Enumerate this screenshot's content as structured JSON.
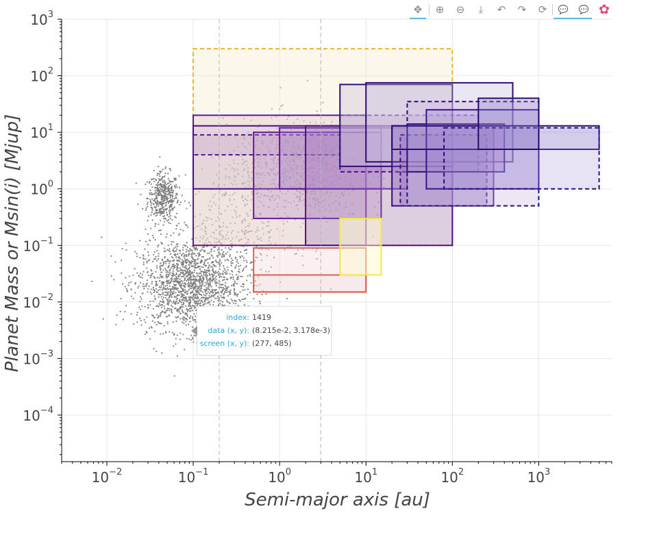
{
  "toolbar": {
    "tools": [
      {
        "icon": "pan-icon",
        "glyph": "✥",
        "active": true
      },
      {
        "icon": "zoom-in-icon",
        "glyph": "⊕",
        "active": false
      },
      {
        "icon": "zoom-out-icon",
        "glyph": "⊖",
        "active": false
      },
      {
        "icon": "save-icon",
        "glyph": "⤓",
        "active": false
      },
      {
        "icon": "undo-icon",
        "glyph": "↶",
        "active": false
      },
      {
        "icon": "redo-icon",
        "glyph": "↷",
        "active": false
      },
      {
        "icon": "reset-icon",
        "glyph": "⟳",
        "active": false
      },
      {
        "icon": "hover-icon",
        "glyph": "💬",
        "active": true
      },
      {
        "icon": "hover-icon",
        "glyph": "💬",
        "active": true
      },
      {
        "icon": "bokeh-logo-icon",
        "glyph": "✿",
        "active": false
      }
    ]
  },
  "tooltip": {
    "rows": [
      {
        "key": "index:",
        "value": "1419"
      },
      {
        "key": "data (x, y):",
        "value": "(8.215e-2, 3.178e-3)"
      },
      {
        "key": "screen (x, y):",
        "value": "(277, 485)"
      }
    ]
  },
  "chart_data": {
    "type": "scatter",
    "xlabel": "Semi-major axis [au]",
    "ylabel": "Planet Mass or Msin(i) [Mjup]",
    "xscale": "log",
    "yscale": "log",
    "xlim": [
      0.003,
      7000
    ],
    "ylim": [
      1.5e-05,
      1000
    ],
    "x_ticks": [
      {
        "m": "10",
        "e": "−2",
        "v": 0.01
      },
      {
        "m": "10",
        "e": "−1",
        "v": 0.1
      },
      {
        "m": "10",
        "e": "0",
        "v": 1
      },
      {
        "m": "10",
        "e": "1",
        "v": 10
      },
      {
        "m": "10",
        "e": "2",
        "v": 100
      },
      {
        "m": "10",
        "e": "3",
        "v": 1000
      }
    ],
    "y_ticks": [
      {
        "m": "10",
        "e": "−4",
        "v": 0.0001
      },
      {
        "m": "10",
        "e": "−3",
        "v": 0.001
      },
      {
        "m": "10",
        "e": "−2",
        "v": 0.01
      },
      {
        "m": "10",
        "e": "−1",
        "v": 0.1
      },
      {
        "m": "10",
        "e": "0",
        "v": 1
      },
      {
        "m": "10",
        "e": "1",
        "v": 10
      },
      {
        "m": "10",
        "e": "2",
        "v": 100
      },
      {
        "m": "10",
        "e": "3",
        "v": 1000
      }
    ],
    "grid": true,
    "vlines": [
      0.2,
      3
    ],
    "scatter_color": "#808080",
    "scatter_clusters": [
      {
        "cx": 0.045,
        "cy": 0.7,
        "sx": 0.09,
        "sy": 0.22,
        "n": 450
      },
      {
        "cx": 0.09,
        "cy": 0.02,
        "sx": 0.3,
        "sy": 0.4,
        "n": 1700
      },
      {
        "cx": 1.5,
        "cy": 2.0,
        "sx": 0.4,
        "sy": 0.45,
        "n": 750
      },
      {
        "cx": 0.3,
        "cy": 0.15,
        "sx": 0.35,
        "sy": 0.55,
        "n": 350
      }
    ],
    "rectangles": [
      {
        "x0": 0.1,
        "x1": 100,
        "y0": 0.1,
        "y1": 300,
        "fill": "#f5eccb",
        "fill_alpha": 0.4,
        "line": "#f0b429",
        "dash": true
      },
      {
        "x0": 0.1,
        "x1": 10,
        "y0": 0.1,
        "y1": 20,
        "fill": "#dcbfc8",
        "fill_alpha": 0.35,
        "line": "#5c1a8c",
        "dash": false
      },
      {
        "x0": 0.1,
        "x1": 15,
        "y0": 1,
        "y1": 13,
        "fill": "#c7a8cc",
        "fill_alpha": 0.25,
        "line": "#4b0c8a",
        "dash": false
      },
      {
        "x0": 0.1,
        "x1": 5,
        "y0": 4,
        "y1": 9,
        "fill": "#b79bc7",
        "fill_alpha": 0.25,
        "line": "#5a138f",
        "dash": true
      },
      {
        "x0": 0.5,
        "x1": 15,
        "y0": 0.3,
        "y1": 10,
        "fill": "#b589c7",
        "fill_alpha": 0.3,
        "line": "#5e1d97",
        "dash": false
      },
      {
        "x0": 1,
        "x1": 30,
        "y0": 1,
        "y1": 12,
        "fill": "#a67fc2",
        "fill_alpha": 0.3,
        "line": "#5a1896",
        "dash": false
      },
      {
        "x0": 2,
        "x1": 100,
        "y0": 0.1,
        "y1": 13,
        "fill": "#9d74bf",
        "fill_alpha": 0.3,
        "line": "#4c0f8c",
        "dash": false
      },
      {
        "x0": 5,
        "x1": 200,
        "y0": 2,
        "y1": 20,
        "fill": "#a586c4",
        "fill_alpha": 0.3,
        "line": "#4b0f88",
        "dash": true
      },
      {
        "x0": 5,
        "x1": 100,
        "y0": 2.5,
        "y1": 70,
        "fill": "#d0c3df",
        "fill_alpha": 0.4,
        "line": "#2f0b75",
        "dash": false
      },
      {
        "x0": 10,
        "x1": 500,
        "y0": 3,
        "y1": 75,
        "fill": "#c6b7e0",
        "fill_alpha": 0.35,
        "line": "#2e0a73",
        "dash": false
      },
      {
        "x0": 20,
        "x1": 300,
        "y0": 0.5,
        "y1": 13,
        "fill": "#8a64ba",
        "fill_alpha": 0.3,
        "line": "#35088a",
        "dash": false
      },
      {
        "x0": 25,
        "x1": 250,
        "y0": 0.5,
        "y1": 9,
        "fill": "#8f6ec0",
        "fill_alpha": 0.3,
        "line": "#3b0a88",
        "dash": true
      },
      {
        "x0": 30,
        "x1": 1000,
        "y0": 0.5,
        "y1": 35,
        "fill": "#c9b8e3",
        "fill_alpha": 0.35,
        "line": "#2d0b74",
        "dash": true
      },
      {
        "x0": 30,
        "x1": 400,
        "y0": 2,
        "y1": 14,
        "fill": "#9b7fc9",
        "fill_alpha": 0.3,
        "line": "#340a86",
        "dash": false
      },
      {
        "x0": 50,
        "x1": 1000,
        "y0": 1,
        "y1": 25,
        "fill": "#9e86cf",
        "fill_alpha": 0.3,
        "line": "#3a118b",
        "dash": false
      },
      {
        "x0": 20,
        "x1": 5000,
        "y0": 5,
        "y1": 13,
        "fill": "#9b8acb",
        "fill_alpha": 0.25,
        "line": "#270b6f",
        "dash": false
      },
      {
        "x0": 80,
        "x1": 5000,
        "y0": 1,
        "y1": 12,
        "fill": "#a090d5",
        "fill_alpha": 0.25,
        "line": "#2c0c79",
        "dash": true
      },
      {
        "x0": 200,
        "x1": 1000,
        "y0": 5,
        "y1": 40,
        "fill": "#8f7dc9",
        "fill_alpha": 0.3,
        "line": "#240b6b",
        "dash": false
      },
      {
        "x0": 0.5,
        "x1": 10,
        "y0": 0.015,
        "y1": 0.09,
        "fill": "#f2d6dc",
        "fill_alpha": 0.4,
        "line": "#d9614f",
        "dash": false
      },
      {
        "x0": 0.5,
        "x1": 10,
        "y0": 0.015,
        "y1": 0.03,
        "fill": "#f2d6dc",
        "fill_alpha": 0.2,
        "line": "#d9614f",
        "dash": false
      },
      {
        "x0": 5,
        "x1": 15,
        "y0": 0.03,
        "y1": 0.3,
        "fill": "#fdf7cf",
        "fill_alpha": 0.5,
        "line": "#f2ea47",
        "dash": false
      }
    ]
  }
}
